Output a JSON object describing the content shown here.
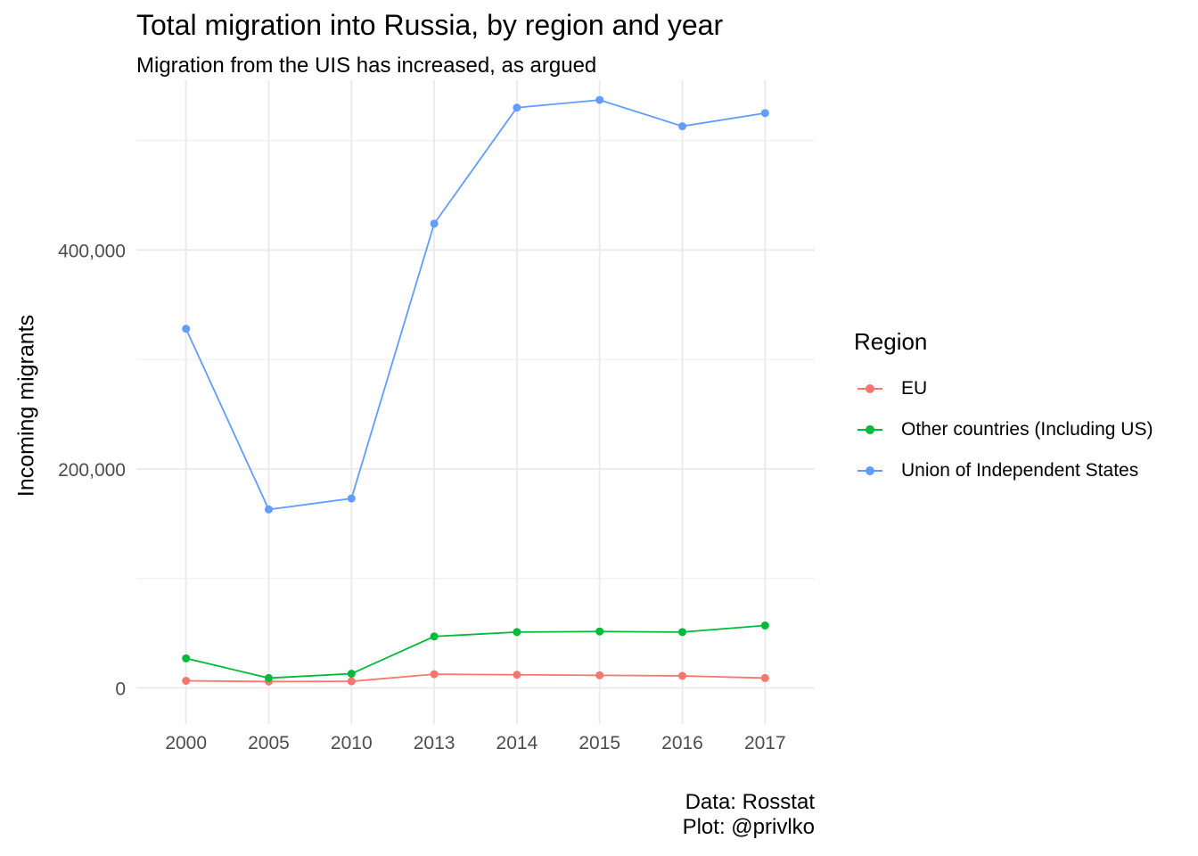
{
  "chart_data": {
    "type": "line",
    "title": "Total migration into Russia, by region and year",
    "subtitle": "Migration from the UIS has increased, as argued",
    "xlabel": "",
    "ylabel": "Incoming migrants",
    "categories": [
      "2000",
      "2005",
      "2010",
      "2013",
      "2014",
      "2015",
      "2016",
      "2017"
    ],
    "y_ticks": [
      0,
      200000,
      400000
    ],
    "y_tick_labels": [
      "0",
      "200,000",
      "400,000"
    ],
    "ylim": [
      -33000,
      555000
    ],
    "grid": true,
    "legend": {
      "title": "Region",
      "position": "right"
    },
    "series": [
      {
        "name": "EU",
        "color": "#F8766D",
        "values": [
          6500,
          5800,
          6000,
          12500,
          12000,
          11500,
          11000,
          9000
        ]
      },
      {
        "name": "Other countries (Including US)",
        "color": "#00BA38",
        "values": [
          27000,
          9000,
          13000,
          47000,
          51000,
          51500,
          51000,
          57000
        ]
      },
      {
        "name": "Union of Independent States",
        "color": "#619CFF",
        "values": [
          328000,
          163000,
          173000,
          424000,
          530000,
          537000,
          513000,
          525000
        ]
      }
    ],
    "caption": [
      "Data: Rosstat",
      "Plot: @privlko"
    ]
  }
}
